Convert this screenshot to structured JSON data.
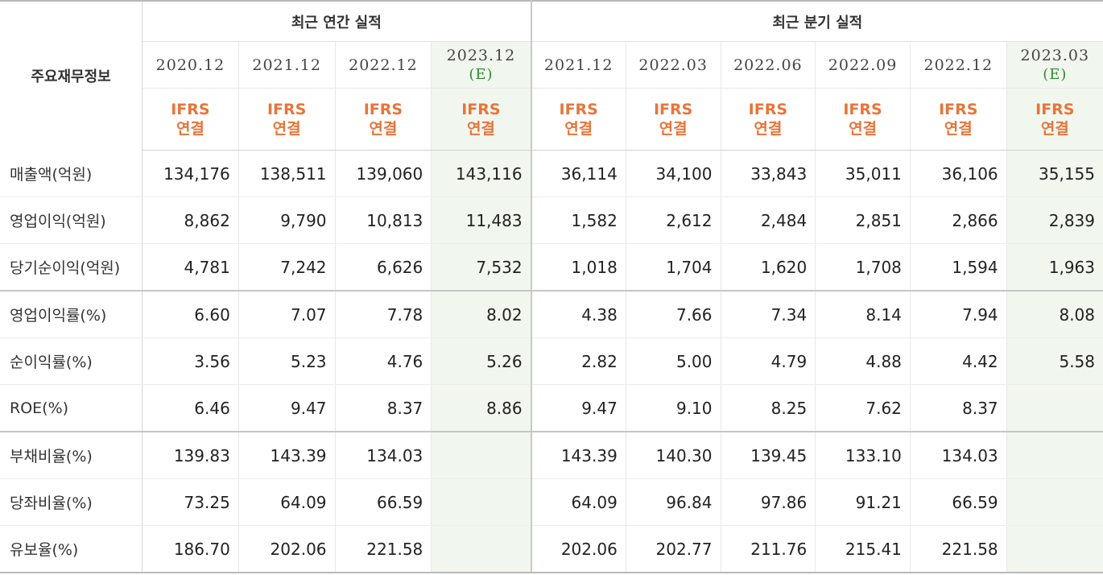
{
  "header": {
    "corner_label": "주요재무정보",
    "annual_title": "최근 연간 실적",
    "quarter_title": "최근 분기 실적",
    "estimate_mark": "(E)",
    "ifrs_line1": "IFRS",
    "ifrs_line2": "연결",
    "annual_periods": [
      "2020.12",
      "2021.12",
      "2022.12",
      "2023.12"
    ],
    "quarter_periods": [
      "2021.12",
      "2022.03",
      "2022.06",
      "2022.09",
      "2022.12",
      "2023.03"
    ]
  },
  "rows": [
    {
      "label": "매출액(억원)",
      "values": [
        "134,176",
        "138,511",
        "139,060",
        "143,116",
        "36,114",
        "34,100",
        "33,843",
        "35,011",
        "36,106",
        "35,155"
      ]
    },
    {
      "label": "영업이익(억원)",
      "values": [
        "8,862",
        "9,790",
        "10,813",
        "11,483",
        "1,582",
        "2,612",
        "2,484",
        "2,851",
        "2,866",
        "2,839"
      ]
    },
    {
      "label": "당기순이익(억원)",
      "values": [
        "4,781",
        "7,242",
        "6,626",
        "7,532",
        "1,018",
        "1,704",
        "1,620",
        "1,708",
        "1,594",
        "1,963"
      ]
    },
    {
      "label": "영업이익률(%)",
      "values": [
        "6.60",
        "7.07",
        "7.78",
        "8.02",
        "4.38",
        "7.66",
        "7.34",
        "8.14",
        "7.94",
        "8.08"
      ]
    },
    {
      "label": "순이익률(%)",
      "values": [
        "3.56",
        "5.23",
        "4.76",
        "5.26",
        "2.82",
        "5.00",
        "4.79",
        "4.88",
        "4.42",
        "5.58"
      ]
    },
    {
      "label": "ROE(%)",
      "values": [
        "6.46",
        "9.47",
        "8.37",
        "8.86",
        "9.47",
        "9.10",
        "8.25",
        "7.62",
        "8.37",
        ""
      ]
    },
    {
      "label": "부채비율(%)",
      "values": [
        "139.83",
        "143.39",
        "134.03",
        "",
        "143.39",
        "140.30",
        "139.45",
        "133.10",
        "134.03",
        ""
      ]
    },
    {
      "label": "당좌비율(%)",
      "values": [
        "73.25",
        "64.09",
        "66.59",
        "",
        "64.09",
        "96.84",
        "97.86",
        "91.21",
        "66.59",
        ""
      ]
    },
    {
      "label": "유보율(%)",
      "values": [
        "186.70",
        "202.06",
        "221.58",
        "",
        "202.06",
        "202.77",
        "211.76",
        "215.41",
        "221.58",
        ""
      ]
    }
  ],
  "colors": {
    "ifrs_text": "#e8753a",
    "estimate_text": "#2f8a2f",
    "estimate_bg": "#f1f7ef"
  }
}
